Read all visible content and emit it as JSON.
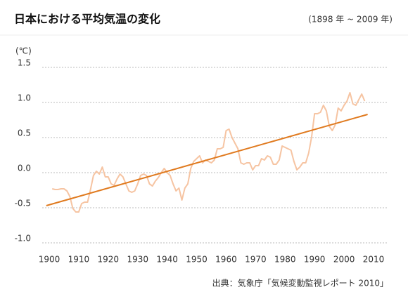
{
  "chart_data": {
    "type": "line",
    "title": "日本における平均気温の変化",
    "subtitle": "(1898 年 ~ 2009 年)",
    "y_label": "(℃)",
    "source": "出典：気象庁「気候変動監視レポート 2010」",
    "xlim": [
      1900,
      2010
    ],
    "xticks": [
      1900,
      1910,
      1920,
      1930,
      1940,
      1950,
      1960,
      1970,
      1980,
      1990,
      2000,
      2010
    ],
    "ylim": [
      -1.0,
      1.5
    ],
    "yticks": [
      1.5,
      {
        "value": 1.0,
        "label": "1.0"
      },
      0.5,
      {
        "value": 0.0,
        "label": "0.0"
      },
      -0.5,
      {
        "value": -1.0,
        "label": "-1.0"
      }
    ],
    "grid": true,
    "series": [
      {
        "color": "#f6c4a2",
        "x": [
          1901,
          1902,
          1903,
          1904,
          1905,
          1906,
          1907,
          1908,
          1909,
          1910,
          1911,
          1912,
          1913,
          1914,
          1915,
          1916,
          1917,
          1918,
          1919,
          1920,
          1921,
          1922,
          1923,
          1924,
          1925,
          1926,
          1927,
          1928,
          1929,
          1930,
          1931,
          1932,
          1933,
          1934,
          1935,
          1936,
          1937,
          1938,
          1939,
          1940,
          1941,
          1942,
          1943,
          1944,
          1945,
          1946,
          1947,
          1948,
          1949,
          1950,
          1951,
          1952,
          1953,
          1954,
          1955,
          1956,
          1957,
          1958,
          1959,
          1960,
          1961,
          1962,
          1963,
          1964,
          1965,
          1966,
          1967,
          1968,
          1969,
          1970,
          1971,
          1972,
          1973,
          1974,
          1975,
          1976,
          1977,
          1978,
          1979,
          1980,
          1981,
          1982,
          1983,
          1984,
          1985,
          1986,
          1987,
          1988,
          1989,
          1990,
          1991,
          1992,
          1993,
          1994,
          1995,
          1996,
          1997,
          1998,
          1999,
          2000,
          2001,
          2002,
          2003,
          2004,
          2005,
          2006,
          2007
        ],
        "values": [
          -0.23,
          -0.24,
          -0.24,
          -0.23,
          -0.23,
          -0.26,
          -0.34,
          -0.51,
          -0.56,
          -0.56,
          -0.44,
          -0.42,
          -0.42,
          -0.24,
          -0.04,
          0.02,
          -0.02,
          0.08,
          -0.06,
          -0.06,
          -0.16,
          -0.18,
          -0.09,
          -0.02,
          -0.06,
          -0.16,
          -0.26,
          -0.28,
          -0.26,
          -0.16,
          -0.04,
          -0.02,
          -0.04,
          -0.16,
          -0.19,
          -0.12,
          -0.07,
          0.0,
          0.06,
          0.0,
          -0.04,
          -0.16,
          -0.26,
          -0.22,
          -0.39,
          -0.22,
          -0.16,
          0.06,
          0.16,
          0.2,
          0.24,
          0.14,
          0.18,
          0.16,
          0.14,
          0.18,
          0.34,
          0.34,
          0.36,
          0.6,
          0.62,
          0.5,
          0.42,
          0.34,
          0.14,
          0.12,
          0.14,
          0.14,
          0.04,
          0.1,
          0.1,
          0.2,
          0.18,
          0.24,
          0.22,
          0.12,
          0.12,
          0.18,
          0.38,
          0.36,
          0.34,
          0.32,
          0.16,
          0.04,
          0.08,
          0.14,
          0.14,
          0.28,
          0.51,
          0.84,
          0.84,
          0.86,
          0.96,
          0.88,
          0.66,
          0.6,
          0.68,
          0.92,
          0.88,
          0.96,
          1.02,
          1.14,
          0.98,
          0.96,
          1.04,
          1.12,
          1.02
        ]
      },
      {
        "color": "#e07a1f",
        "x": [
          1899,
          2008
        ],
        "values": [
          -0.47,
          0.83
        ]
      }
    ]
  }
}
